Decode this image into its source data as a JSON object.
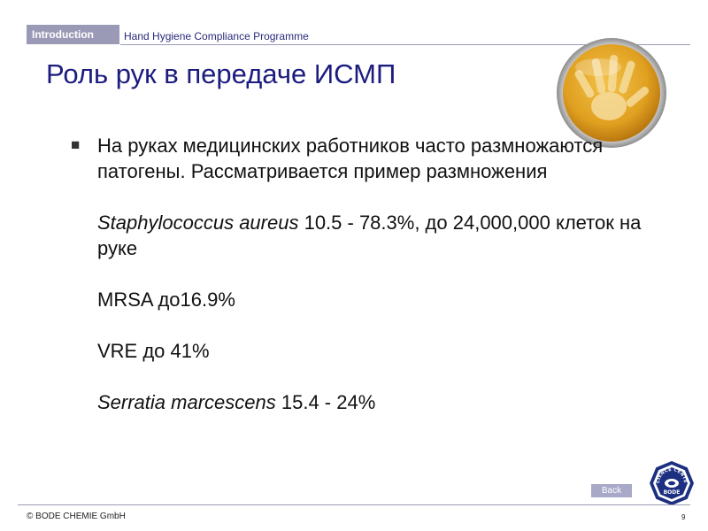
{
  "header": {
    "section_tab": "Introduction",
    "program": "Hand Hygiene Compliance Programme"
  },
  "slide": {
    "title": "Роль рук в передаче ИСМП",
    "bullets": [
      {
        "marker": "■",
        "text": "На руках медицинских работников часто размножаются патогены. Рассматривается пример размножения"
      },
      {
        "marker": "",
        "italic": "Staphylococcus aureus",
        "rest": " 10.5 - 78.3%, до 24,000,000 клеток на руке"
      },
      {
        "marker": "",
        "text": "MRSA до16.9%"
      },
      {
        "marker": "",
        "text": "VRE до 41%"
      },
      {
        "marker": "",
        "italic": "Serratia marcescens",
        "rest": " 15.4 - 24%"
      }
    ]
  },
  "footer": {
    "back_label": "Back",
    "copyright": "© BODE CHEMIE GmbH",
    "page_number": "9",
    "logo_top_text": "SCIENCE CENTER",
    "logo_bottom_text": "BODE"
  },
  "colors": {
    "title": "#1c1c80",
    "accent": "#9a9ab6",
    "petri_agar": "#e0a020",
    "logo": "#1c2f80"
  }
}
